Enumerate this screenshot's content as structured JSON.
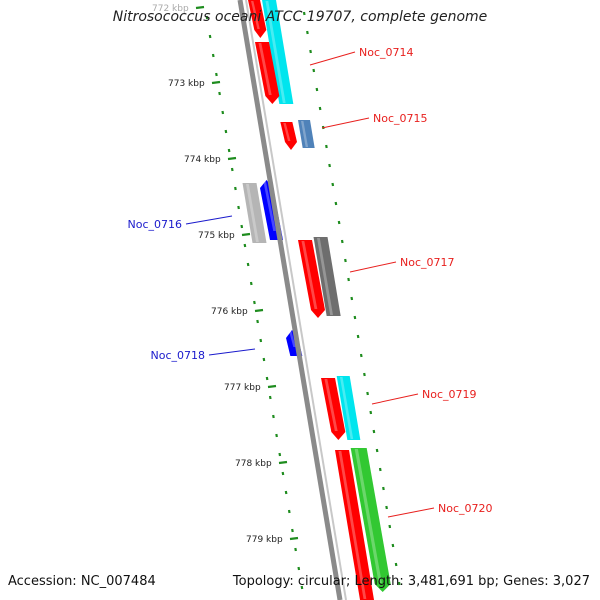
{
  "title": "Nitrosococcus oceani ATCC 19707, complete genome",
  "accession": "Accession: NC_007484",
  "summary": "Topology: circular; Length: 3,481,691 bp; Genes: 3,027",
  "scale_labels": [
    "772 kbp",
    "773 kbp",
    "774 kbp",
    "775 kbp",
    "776 kbp",
    "777 kbp",
    "778 kbp",
    "779 kbp"
  ],
  "genes": [
    {
      "name": "Noc_0714",
      "color": "#e8201e"
    },
    {
      "name": "Noc_0715",
      "color": "#e8201e"
    },
    {
      "name": "Noc_0716",
      "color": "#1a1acc"
    },
    {
      "name": "Noc_0717",
      "color": "#e8201e"
    },
    {
      "name": "Noc_0718",
      "color": "#1a1acc"
    },
    {
      "name": "Noc_0719",
      "color": "#e8201e"
    },
    {
      "name": "Noc_0720",
      "color": "#e8201e"
    }
  ],
  "colors": {
    "backbone": "#8a8a8a",
    "forward_cds": "#ff0000",
    "reverse_cds": "#0000ff",
    "cyan_feature": "#00e5ee",
    "steel_feature": "#4f82b9",
    "gray_feature": "#6e6e6e",
    "green_feature": "#32c832",
    "light_gray_feature": "#b5b5b5",
    "tick": "#1e8c1e"
  }
}
